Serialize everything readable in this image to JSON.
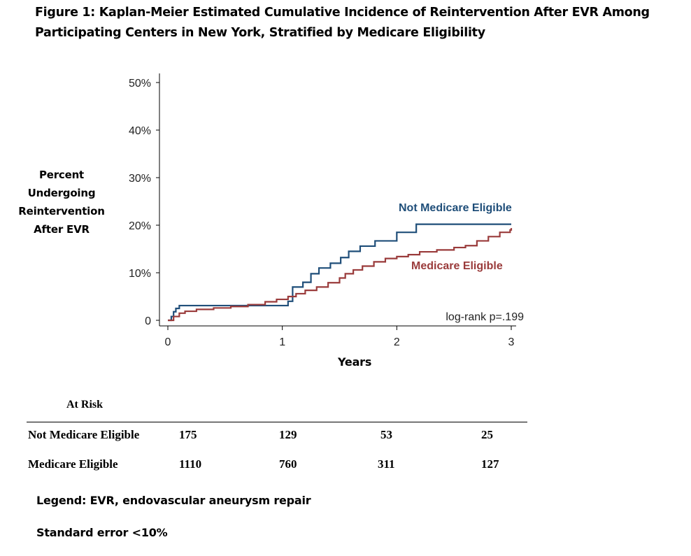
{
  "figure": {
    "title": "Figure 1: Kaplan-Meier Estimated Cumulative Incidence of Reintervention After EVR Among Participating Centers in New York, Stratified by Medicare Eligibility"
  },
  "chart_data": {
    "type": "line",
    "title": "Figure 1: Kaplan-Meier Estimated Cumulative Incidence of Reintervention After EVR Among Participating Centers in New York, Stratified by Medicare Eligibility",
    "xlabel": "Years",
    "ylabel": "Percent Undergoing Reintervention After EVR",
    "xlim": [
      0,
      3
    ],
    "ylim": [
      0,
      50
    ],
    "xticks": [
      "0",
      "1",
      "2",
      "3"
    ],
    "yticks": [
      {
        "value": 0,
        "label": "0"
      },
      {
        "value": 10,
        "label": "10%"
      },
      {
        "value": 20,
        "label": "20%"
      },
      {
        "value": 30,
        "label": "30%"
      },
      {
        "value": 40,
        "label": "40%"
      },
      {
        "value": 50,
        "label": "50%"
      }
    ],
    "grid": false,
    "annotation": "log-rank p=.199",
    "series": [
      {
        "name": "Not Medicare Eligible",
        "color": "#1f4e79",
        "step": true,
        "x": [
          0,
          0.03,
          0.05,
          0.07,
          0.1,
          0.45,
          0.95,
          1.05,
          1.09,
          1.18,
          1.25,
          1.32,
          1.42,
          1.51,
          1.58,
          1.68,
          1.81,
          2.0,
          2.17,
          3.0
        ],
        "y": [
          0,
          0.8,
          1.8,
          2.5,
          3.1,
          3.1,
          3.1,
          4.0,
          7.0,
          8.0,
          9.8,
          11.0,
          12.0,
          13.2,
          14.5,
          15.6,
          16.7,
          18.5,
          20.2,
          20.2
        ]
      },
      {
        "name": "Medicare Eligible",
        "color": "#9a3b3b",
        "step": true,
        "x": [
          0,
          0.05,
          0.1,
          0.15,
          0.25,
          0.4,
          0.55,
          0.7,
          0.85,
          0.95,
          1.05,
          1.12,
          1.2,
          1.3,
          1.4,
          1.5,
          1.55,
          1.62,
          1.7,
          1.8,
          1.9,
          2.0,
          2.1,
          2.2,
          2.35,
          2.5,
          2.6,
          2.7,
          2.8,
          2.9,
          2.99,
          3.0
        ],
        "y": [
          0,
          0.8,
          1.5,
          1.9,
          2.3,
          2.6,
          2.9,
          3.3,
          3.9,
          4.4,
          5.0,
          5.6,
          6.3,
          7.0,
          7.9,
          8.9,
          9.8,
          10.6,
          11.4,
          12.3,
          13.0,
          13.4,
          13.8,
          14.4,
          14.8,
          15.3,
          15.7,
          16.7,
          17.6,
          18.5,
          19.0,
          19.4
        ]
      }
    ]
  },
  "at_risk": {
    "title": "At Risk",
    "rows": [
      {
        "label": "Not Medicare Eligible",
        "values": [
          "175",
          "129",
          "53",
          "25"
        ]
      },
      {
        "label": "Medicare Eligible",
        "values": [
          "1110",
          "760",
          "311",
          "127"
        ]
      }
    ]
  },
  "notes": {
    "legend": "Legend: EVR, endovascular aneurysm repair",
    "se": "Standard error <10%"
  }
}
